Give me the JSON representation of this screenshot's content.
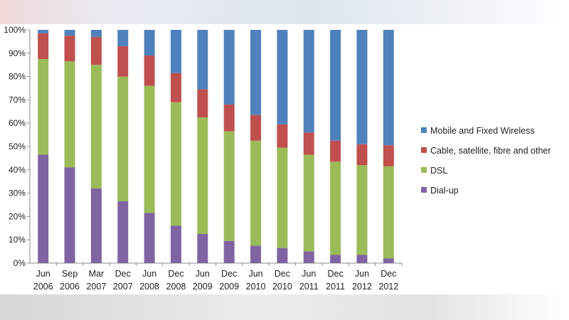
{
  "chart_data": {
    "type": "bar",
    "stacked": true,
    "title": "",
    "xlabel": "",
    "ylabel": "",
    "ylim": [
      0,
      100
    ],
    "y_ticks": [
      "0%",
      "10%",
      "20%",
      "30%",
      "40%",
      "50%",
      "60%",
      "70%",
      "80%",
      "90%",
      "100%"
    ],
    "categories": [
      [
        "Jun",
        "2006"
      ],
      [
        "Sep",
        "2006"
      ],
      [
        "Mar",
        "2007"
      ],
      [
        "Dec",
        "2007"
      ],
      [
        "Jun",
        "2008"
      ],
      [
        "Dec",
        "2008"
      ],
      [
        "Jun",
        "2009"
      ],
      [
        "Dec",
        "2009"
      ],
      [
        "Jun",
        "2010"
      ],
      [
        "Dec",
        "2010"
      ],
      [
        "Jun",
        "2011"
      ],
      [
        "Dec",
        "2011"
      ],
      [
        "Jun",
        "2012"
      ],
      [
        "Dec",
        "2012"
      ]
    ],
    "series": [
      {
        "name": "Dial-up",
        "color": "#8064a2",
        "values": [
          46.5,
          41,
          32,
          26.5,
          21.5,
          16,
          12.5,
          9.5,
          7.5,
          6.5,
          5,
          3.5,
          3.5,
          2
        ]
      },
      {
        "name": "DSL",
        "color": "#9bbb59",
        "values": [
          41,
          45.5,
          53,
          53.5,
          54.5,
          53,
          50,
          47,
          45,
          43,
          41.5,
          40,
          38.5,
          39.5
        ]
      },
      {
        "name": "Cable, satellite, fibre and other",
        "color": "#c0504d",
        "values": [
          11,
          11,
          12,
          13,
          13,
          12.5,
          12,
          11.5,
          11,
          10,
          9.5,
          9,
          9,
          9
        ]
      },
      {
        "name": "Mobile and Fixed Wireless",
        "color": "#4f81bd",
        "values": [
          1.5,
          2.5,
          3,
          7,
          11,
          18.5,
          25.5,
          32,
          36.5,
          40.5,
          44,
          47.5,
          49,
          49.5
        ]
      }
    ],
    "legend": {
      "position": "right",
      "order": [
        "Mobile and Fixed Wireless",
        "Cable, satellite, fibre and other",
        "DSL",
        "Dial-up"
      ]
    },
    "grid": false
  }
}
